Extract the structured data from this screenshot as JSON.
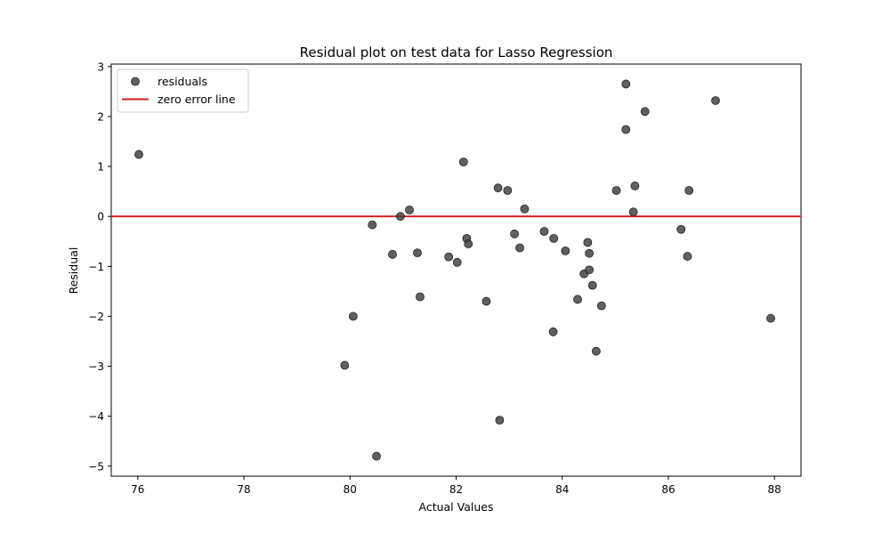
{
  "chart_data": {
    "type": "scatter",
    "title": "Residual plot on test data for Lasso Regression",
    "xlabel": "Actual Values",
    "ylabel": "Residual",
    "xlim": [
      75.5,
      88.5
    ],
    "ylim": [
      -5.2,
      3.05
    ],
    "xticks": [
      76,
      78,
      80,
      82,
      84,
      86,
      88
    ],
    "yticks": [
      -5,
      -4,
      -3,
      -2,
      -1,
      0,
      1,
      2,
      3
    ],
    "grid": false,
    "legend_position": "upper-left",
    "series": [
      {
        "name": "residuals",
        "color": "#444444",
        "points": [
          {
            "x": 76.02,
            "y": 1.24
          },
          {
            "x": 79.9,
            "y": -2.98
          },
          {
            "x": 80.06,
            "y": -2.0
          },
          {
            "x": 80.42,
            "y": -0.17
          },
          {
            "x": 80.5,
            "y": -4.8
          },
          {
            "x": 80.8,
            "y": -0.76
          },
          {
            "x": 80.95,
            "y": 0.0
          },
          {
            "x": 81.12,
            "y": 0.13
          },
          {
            "x": 81.27,
            "y": -0.73
          },
          {
            "x": 81.32,
            "y": -1.61
          },
          {
            "x": 81.86,
            "y": -0.81
          },
          {
            "x": 82.02,
            "y": -0.92
          },
          {
            "x": 82.14,
            "y": 1.09
          },
          {
            "x": 82.2,
            "y": -0.44
          },
          {
            "x": 82.23,
            "y": -0.55
          },
          {
            "x": 82.57,
            "y": -1.7
          },
          {
            "x": 82.79,
            "y": 0.57
          },
          {
            "x": 82.82,
            "y": -4.08
          },
          {
            "x": 82.97,
            "y": 0.52
          },
          {
            "x": 83.1,
            "y": -0.35
          },
          {
            "x": 83.2,
            "y": -0.63
          },
          {
            "x": 83.29,
            "y": 0.15
          },
          {
            "x": 83.66,
            "y": -0.3
          },
          {
            "x": 83.83,
            "y": -2.31
          },
          {
            "x": 83.84,
            "y": -0.44
          },
          {
            "x": 84.06,
            "y": -0.69
          },
          {
            "x": 84.29,
            "y": -1.66
          },
          {
            "x": 84.41,
            "y": -1.15
          },
          {
            "x": 84.48,
            "y": -0.52
          },
          {
            "x": 84.51,
            "y": -0.74
          },
          {
            "x": 84.51,
            "y": -1.07
          },
          {
            "x": 84.57,
            "y": -1.38
          },
          {
            "x": 84.64,
            "y": -2.7
          },
          {
            "x": 84.74,
            "y": -1.79
          },
          {
            "x": 85.02,
            "y": 0.52
          },
          {
            "x": 85.2,
            "y": 2.65
          },
          {
            "x": 85.2,
            "y": 1.74
          },
          {
            "x": 85.34,
            "y": 0.09
          },
          {
            "x": 85.37,
            "y": 0.61
          },
          {
            "x": 85.56,
            "y": 2.1
          },
          {
            "x": 86.24,
            "y": -0.26
          },
          {
            "x": 86.36,
            "y": -0.8
          },
          {
            "x": 86.39,
            "y": 0.52
          },
          {
            "x": 86.89,
            "y": 2.32
          },
          {
            "x": 87.93,
            "y": -2.04
          }
        ]
      }
    ],
    "reference_lines": [
      {
        "name": "zero error line",
        "y": 0,
        "color": "#d62020"
      }
    ],
    "legend": {
      "entries": [
        "residuals",
        "zero error line"
      ]
    }
  }
}
